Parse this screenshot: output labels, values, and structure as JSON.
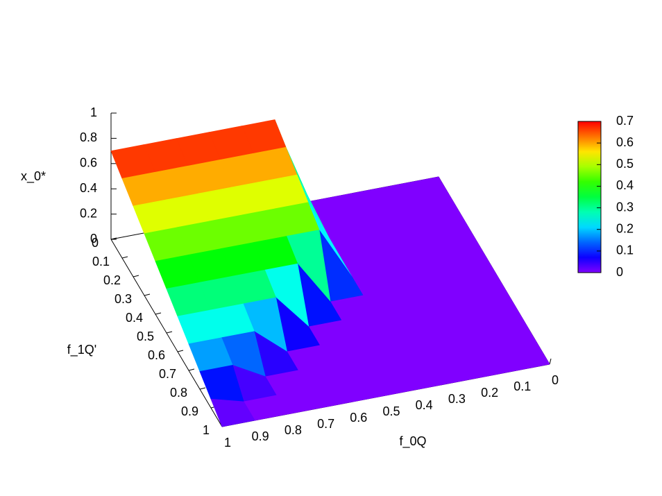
{
  "chart_data": {
    "type": "surface",
    "xlabel": "f_0Q",
    "ylabel": "f_1Q'",
    "zlabel": "x_0*",
    "x": [
      1,
      0.9,
      0.8,
      0.7,
      0.6,
      0.5,
      0.4,
      0.3,
      0.2,
      0.1,
      0
    ],
    "y": [
      0,
      0.1,
      0.2,
      0.3,
      0.4,
      0.5,
      0.6,
      0.7,
      0.8,
      0.9,
      1
    ],
    "z": [
      [
        0.7,
        0.7,
        0.7,
        0.7,
        0.7,
        0.7,
        0,
        0,
        0,
        0,
        0
      ],
      [
        0.63,
        0.63,
        0.63,
        0.63,
        0.63,
        0.63,
        0,
        0,
        0,
        0,
        0
      ],
      [
        0.56,
        0.56,
        0.56,
        0.56,
        0.56,
        0.56,
        0,
        0,
        0,
        0,
        0
      ],
      [
        0.49,
        0.49,
        0.49,
        0.49,
        0.49,
        0.49,
        0,
        0,
        0,
        0,
        0
      ],
      [
        0.42,
        0.42,
        0.42,
        0.42,
        0.42,
        0.42,
        0,
        0,
        0,
        0,
        0
      ],
      [
        0.35,
        0.35,
        0.35,
        0.35,
        0.35,
        0,
        0,
        0,
        0,
        0,
        0
      ],
      [
        0.28,
        0.28,
        0.28,
        0.28,
        0,
        0,
        0,
        0,
        0,
        0,
        0
      ],
      [
        0.21,
        0.21,
        0.21,
        0,
        0,
        0,
        0,
        0,
        0,
        0,
        0
      ],
      [
        0.14,
        0.14,
        0,
        0,
        0,
        0,
        0,
        0,
        0,
        0,
        0
      ],
      [
        0.07,
        0,
        0,
        0,
        0,
        0,
        0,
        0,
        0,
        0,
        0
      ],
      [
        0,
        0,
        0,
        0,
        0,
        0,
        0,
        0,
        0,
        0,
        0
      ]
    ],
    "xlim": [
      0,
      1
    ],
    "ylim": [
      0,
      1
    ],
    "zlim": [
      0,
      1
    ],
    "xticks": [
      0,
      0.1,
      0.2,
      0.3,
      0.4,
      0.5,
      0.6,
      0.7,
      0.8,
      0.9,
      1
    ],
    "yticks": [
      0,
      0.1,
      0.2,
      0.3,
      0.4,
      0.5,
      0.6,
      0.7,
      0.8,
      0.9,
      1
    ],
    "zticks": [
      0,
      0.2,
      0.4,
      0.6,
      0.8,
      1
    ],
    "cblim": [
      0,
      0.7
    ],
    "cbticks": [
      0,
      0.1,
      0.2,
      0.3,
      0.4,
      0.5,
      0.6,
      0.7
    ]
  }
}
